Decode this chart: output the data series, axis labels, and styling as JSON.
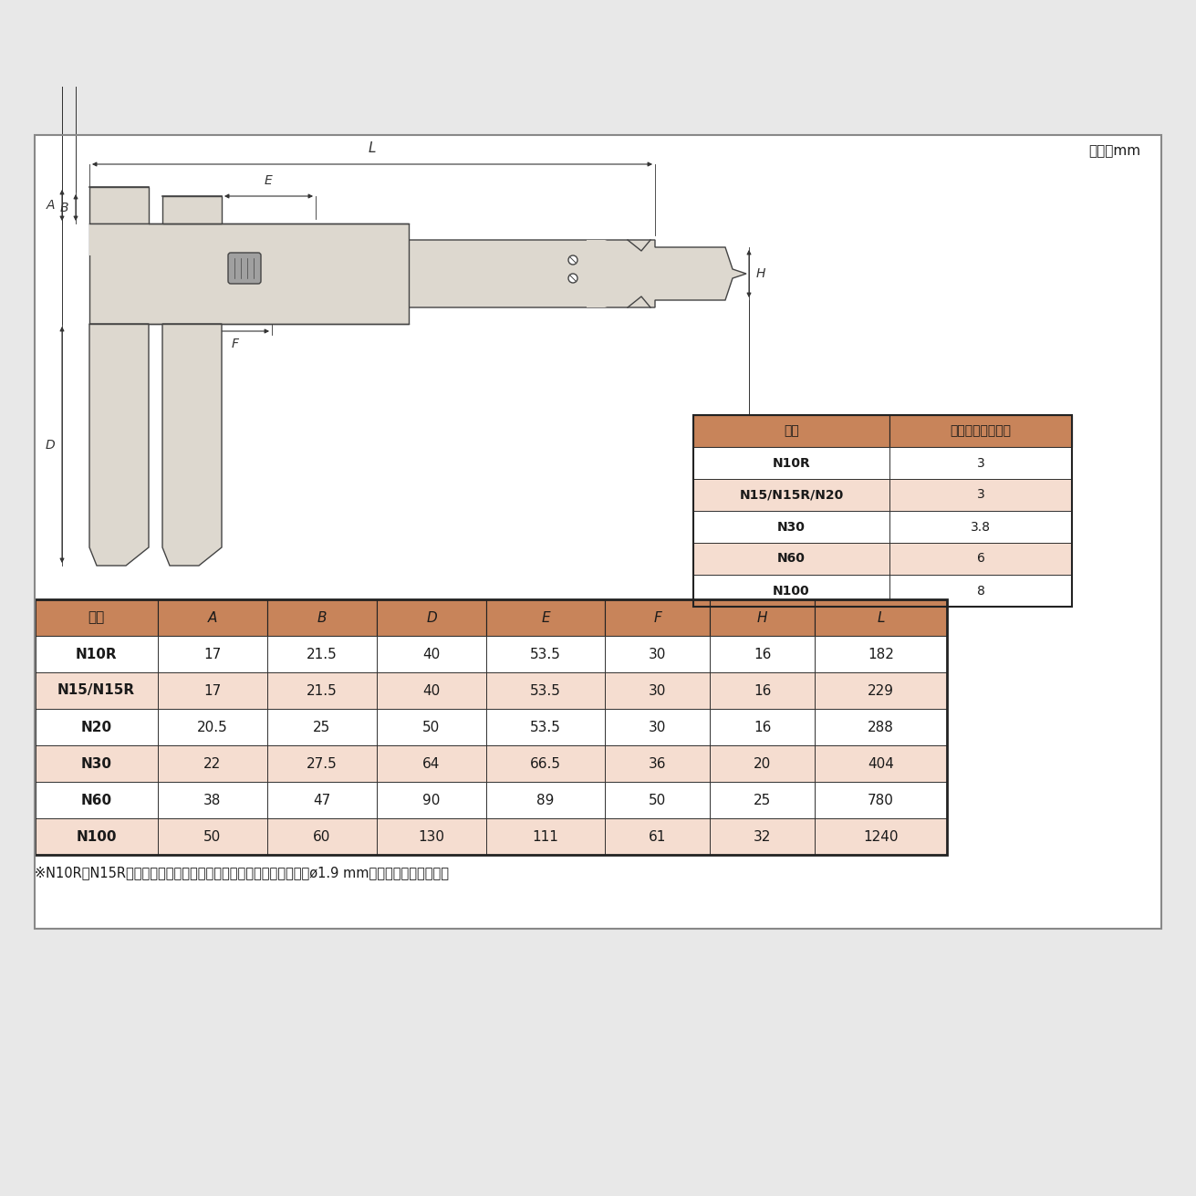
{
  "bg_color": "#e8e8e8",
  "panel_bg": "#ffffff",
  "header_color": "#c8845a",
  "row_alt_color": "#f5ddd0",
  "row_white": "#ffffff",
  "border_color": "#222222",
  "text_color": "#1a1a1a",
  "unit_text": "単位：mm",
  "small_table_headers": [
    "符号",
    "外側ジョウの厚さ"
  ],
  "small_table_rows": [
    [
      "N10R",
      "3"
    ],
    [
      "N15/N15R/N20",
      "3"
    ],
    [
      "N30",
      "3.8"
    ],
    [
      "N60",
      "6"
    ],
    [
      "N100",
      "8"
    ]
  ],
  "main_table_headers": [
    "符号",
    "A",
    "B",
    "D",
    "E",
    "F",
    "H",
    "L"
  ],
  "main_table_rows": [
    [
      "N10R",
      "17",
      "21.5",
      "40",
      "53.5",
      "30",
      "16",
      "182"
    ],
    [
      "N15/N15R",
      "17",
      "21.5",
      "40",
      "53.5",
      "30",
      "16",
      "229"
    ],
    [
      "N20",
      "20.5",
      "25",
      "50",
      "53.5",
      "30",
      "16",
      "288"
    ],
    [
      "N30",
      "22",
      "27.5",
      "64",
      "66.5",
      "36",
      "20",
      "404"
    ],
    [
      "N60",
      "38",
      "47",
      "90",
      "89",
      "50",
      "25",
      "780"
    ],
    [
      "N100",
      "50",
      "60",
      "130",
      "111",
      "61",
      "32",
      "1240"
    ]
  ],
  "footnote": "※N10RとN15Rは、図中のデブスバーとは異なる丸形デプスバー（ø1.9 mm）となっております。"
}
